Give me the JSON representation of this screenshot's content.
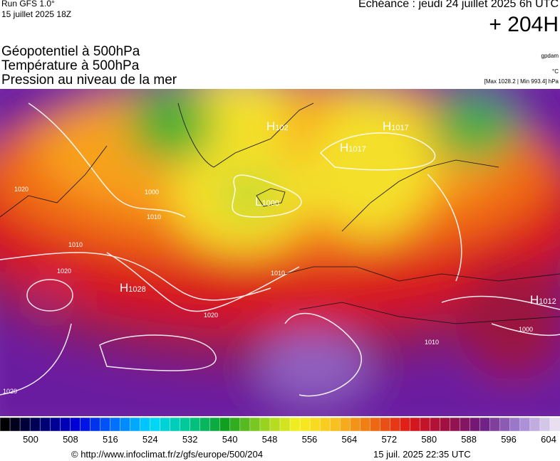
{
  "header": {
    "run": "Run GFS 1.0°",
    "run_date": "15 juillet 2025 18Z",
    "forecast": "Echéance : jeudi 24 juillet 2025 6h UTC",
    "lead": "+ 204H",
    "fields": [
      "Géopotentiel à 500hPa",
      "Température à 500hPa",
      "Pression au niveau de la mer"
    ],
    "unit_geo": "gpdam",
    "unit_temp": "°C",
    "pressure_range": "[Max 1028.2 | Min 993.4] hPa"
  },
  "map": {
    "centers": [
      {
        "kind": "H",
        "value": "1028"
      },
      {
        "kind": "H",
        "value": "1017"
      },
      {
        "kind": "H",
        "value": "1017"
      },
      {
        "kind": "H",
        "value": "102"
      },
      {
        "kind": "L",
        "value": "1000"
      },
      {
        "kind": "H",
        "value": "1012"
      }
    ],
    "isobars": [
      "1010",
      "1020",
      "1020",
      "1010",
      "1000",
      "1020",
      "1010",
      "1020",
      "1000",
      "1010"
    ]
  },
  "colorbar": {
    "labels": [
      500,
      508,
      516,
      524,
      532,
      540,
      548,
      556,
      564,
      572,
      580,
      588,
      596,
      604
    ]
  },
  "footer": {
    "url": "© http://www.infoclimat.fr/z/gfs/europe/500/204",
    "generated": "15 juil. 2025 22:35 UTC"
  }
}
